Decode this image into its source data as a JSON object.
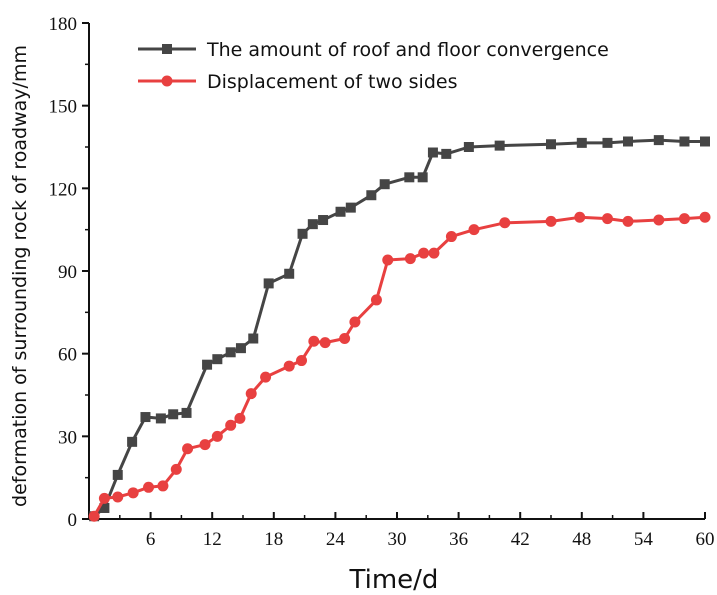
{
  "chart_data": {
    "type": "line",
    "xlabel": "Time/d",
    "ylabel": "deformation of surrounding rock of roadway/mm",
    "xlim": [
      0,
      60
    ],
    "ylim": [
      0,
      180
    ],
    "x_ticks": [
      6,
      12,
      18,
      24,
      30,
      36,
      42,
      48,
      54,
      60
    ],
    "y_ticks": [
      0,
      30,
      60,
      90,
      120,
      150,
      180
    ],
    "grid": false,
    "legend_position": "top-left",
    "series": [
      {
        "name": "The amount of roof and floor convergence",
        "color": "#454545",
        "marker": "square",
        "points": [
          [
            0.5,
            1
          ],
          [
            1.5,
            4
          ],
          [
            2.8,
            16
          ],
          [
            4.2,
            28
          ],
          [
            5.5,
            37
          ],
          [
            7.0,
            36.5
          ],
          [
            8.2,
            38
          ],
          [
            9.5,
            38.5
          ],
          [
            11.5,
            56
          ],
          [
            12.5,
            58
          ],
          [
            13.8,
            60.5
          ],
          [
            14.8,
            62
          ],
          [
            16.0,
            65.5
          ],
          [
            17.5,
            85.5
          ],
          [
            19.5,
            89
          ],
          [
            20.8,
            103.5
          ],
          [
            21.8,
            107
          ],
          [
            22.8,
            108.5
          ],
          [
            24.5,
            111.5
          ],
          [
            25.5,
            113
          ],
          [
            27.5,
            117.5
          ],
          [
            28.8,
            121.5
          ],
          [
            31.2,
            124
          ],
          [
            32.5,
            124
          ],
          [
            33.5,
            133
          ],
          [
            34.8,
            132.5
          ],
          [
            37.0,
            135
          ],
          [
            40.0,
            135.5
          ],
          [
            45.0,
            136
          ],
          [
            48.0,
            136.5
          ],
          [
            50.5,
            136.5
          ],
          [
            52.5,
            137
          ],
          [
            55.5,
            137.5
          ],
          [
            58.0,
            137
          ],
          [
            60.0,
            137
          ]
        ]
      },
      {
        "name": "Displacement of two sides",
        "color": "#e84040",
        "marker": "circle",
        "points": [
          [
            0.5,
            1
          ],
          [
            1.5,
            7.5
          ],
          [
            2.8,
            8
          ],
          [
            4.3,
            9.5
          ],
          [
            5.8,
            11.5
          ],
          [
            7.2,
            12
          ],
          [
            8.5,
            18
          ],
          [
            9.6,
            25.5
          ],
          [
            11.3,
            27
          ],
          [
            12.5,
            30
          ],
          [
            13.8,
            34
          ],
          [
            14.7,
            36.5
          ],
          [
            15.8,
            45.5
          ],
          [
            17.2,
            51.5
          ],
          [
            19.5,
            55.5
          ],
          [
            20.7,
            57.5
          ],
          [
            21.9,
            64.5
          ],
          [
            23.0,
            64
          ],
          [
            24.9,
            65.5
          ],
          [
            25.9,
            71.5
          ],
          [
            28.0,
            79.5
          ],
          [
            29.1,
            94
          ],
          [
            31.3,
            94.5
          ],
          [
            32.6,
            96.5
          ],
          [
            33.6,
            96.5
          ],
          [
            35.3,
            102.5
          ],
          [
            37.5,
            105
          ],
          [
            40.5,
            107.5
          ],
          [
            45.0,
            108
          ],
          [
            47.8,
            109.5
          ],
          [
            50.5,
            109
          ],
          [
            52.5,
            108
          ],
          [
            55.5,
            108.5
          ],
          [
            58.0,
            109
          ],
          [
            60.0,
            109.5
          ]
        ]
      }
    ]
  }
}
